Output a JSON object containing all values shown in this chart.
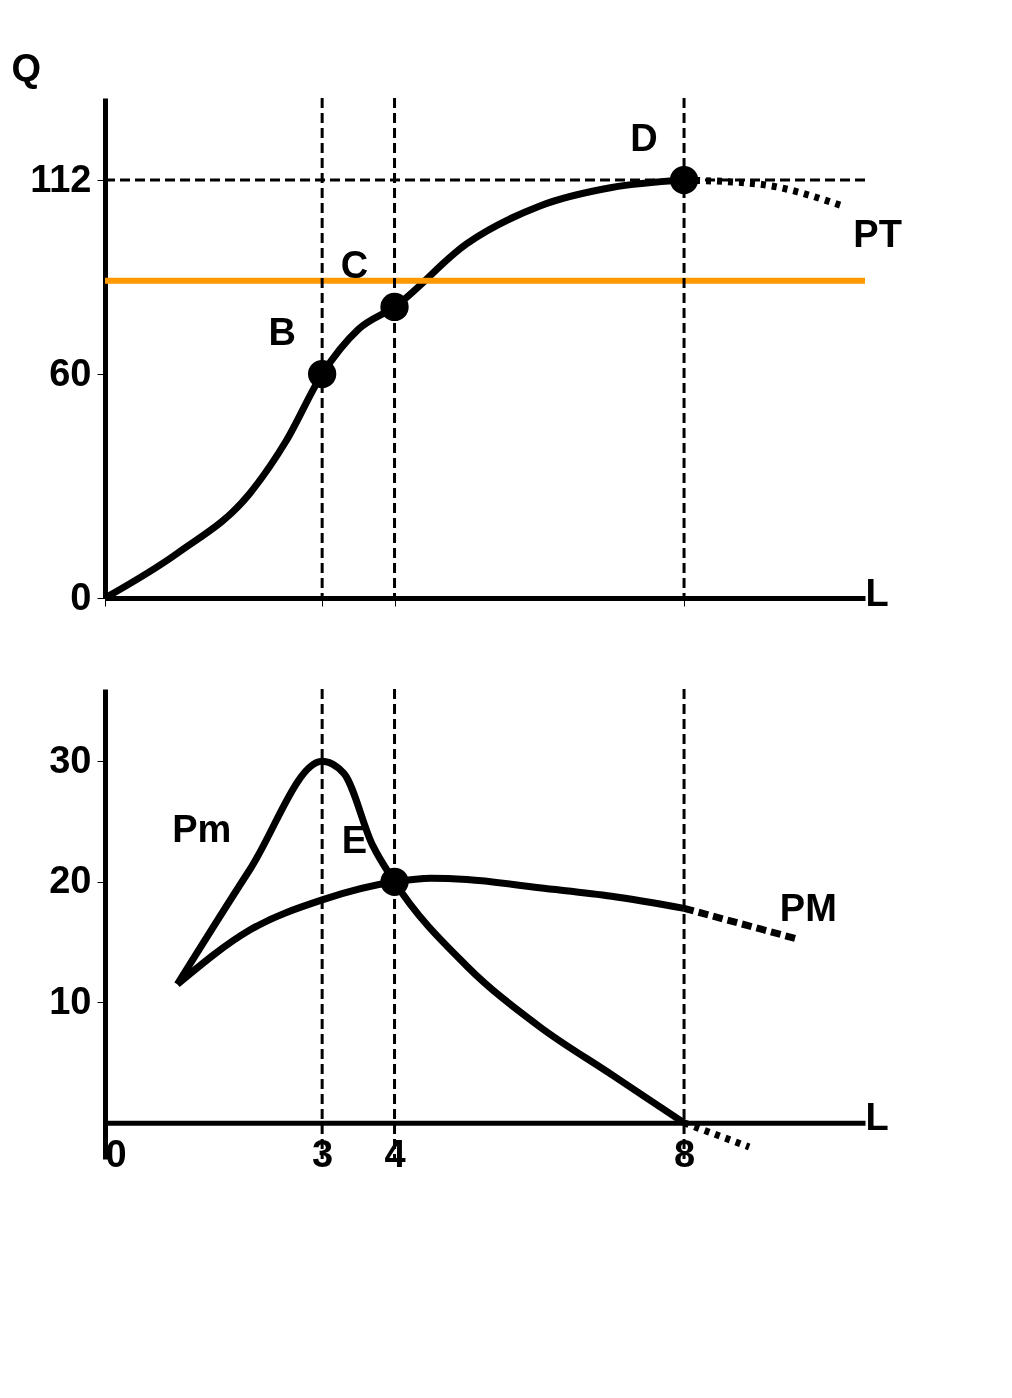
{
  "chart_data": [
    {
      "type": "line",
      "ylabel": "Q",
      "xlabel": "L",
      "xlim": [
        0,
        10.5
      ],
      "ylim": [
        0,
        134
      ],
      "xticks": [
        0,
        3,
        4,
        8
      ],
      "yticks": [
        0,
        60,
        112
      ],
      "tick_labels": "y",
      "series": [
        {
          "color": "#000000",
          "line_style": "solid",
          "x": [
            0,
            1,
            2,
            2.5,
            3,
            3.5,
            4,
            5,
            6,
            7,
            8
          ],
          "values": [
            0,
            12,
            28,
            42,
            60,
            72,
            78,
            95,
            105,
            110,
            112
          ]
        },
        {
          "name": "PT",
          "color": "#000000",
          "line_style": "dotted",
          "x": [
            8,
            9,
            10.2
          ],
          "values": [
            112,
            111,
            105
          ]
        },
        {
          "type": "scatter",
          "marker": "circle",
          "color": "#000000",
          "x": [
            3,
            4,
            8
          ],
          "values": [
            60,
            78,
            112
          ]
        }
      ],
      "ref_lines": [
        {
          "axis": "y",
          "value": 112,
          "line_style": "dashed",
          "color": "#000000"
        },
        {
          "axis": "y",
          "value": 85,
          "line_style": "solid",
          "color": "#ff9900"
        },
        {
          "axis": "x",
          "value": 3,
          "line_style": "dashed",
          "color": "#000000"
        },
        {
          "axis": "x",
          "value": 4,
          "line_style": "dashed",
          "color": "#000000"
        },
        {
          "axis": "x",
          "value": 8,
          "line_style": "dashed",
          "color": "#000000"
        }
      ],
      "annotations": [
        {
          "text": "B",
          "x": 3,
          "y": 60
        },
        {
          "text": "C",
          "x": 4,
          "y": 78
        },
        {
          "text": "D",
          "x": 8,
          "y": 112
        }
      ]
    },
    {
      "type": "line",
      "xlabel": "L",
      "xlim": [
        0,
        10.5
      ],
      "ylim": [
        -3,
        36
      ],
      "xticks": [
        0,
        3,
        4,
        8
      ],
      "yticks": [
        10,
        20,
        30
      ],
      "series": [
        {
          "name": "Pm",
          "color": "#000000",
          "line_style": "solid",
          "x": [
            1,
            2,
            3,
            3.3,
            3.7,
            4,
            5,
            6,
            7,
            8
          ],
          "values": [
            11.5,
            21,
            30,
            29,
            23,
            20,
            13,
            8,
            4,
            0
          ]
        },
        {
          "color": "#000000",
          "line_style": "dotted",
          "x": [
            8,
            8.9
          ],
          "values": [
            0,
            -2
          ]
        },
        {
          "color": "#000000",
          "line_style": "solid",
          "x": [
            1,
            2,
            3,
            4,
            4.5,
            5,
            6,
            7,
            8
          ],
          "values": [
            11.5,
            16,
            18.5,
            20,
            20.3,
            20.2,
            19.5,
            18.8,
            17.8
          ]
        },
        {
          "name": "PM",
          "color": "#000000",
          "line_style": "dashed",
          "x": [
            8,
            9.6
          ],
          "values": [
            17.8,
            15.2
          ]
        },
        {
          "type": "scatter",
          "marker": "circle",
          "color": "#000000",
          "x": [
            4
          ],
          "values": [
            20
          ]
        }
      ],
      "ref_lines": [
        {
          "axis": "x",
          "value": 3,
          "line_style": "dashed",
          "color": "#000000"
        },
        {
          "axis": "x",
          "value": 4,
          "line_style": "dashed",
          "color": "#000000"
        },
        {
          "axis": "x",
          "value": 8,
          "line_style": "dashed",
          "color": "#000000"
        }
      ],
      "annotations": [
        {
          "text": "E",
          "x": 4,
          "y": 20
        }
      ]
    }
  ]
}
